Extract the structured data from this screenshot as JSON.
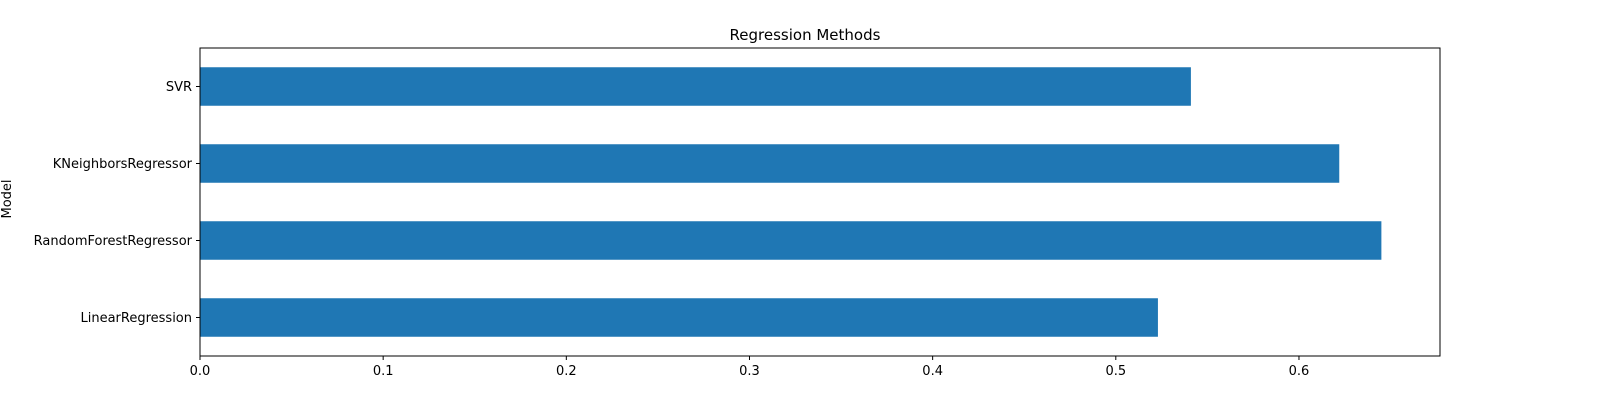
{
  "chart_data": {
    "type": "bar",
    "orientation": "horizontal",
    "title": "Regression Methods",
    "xlabel": "",
    "ylabel": "Model",
    "categories": [
      "LinearRegression",
      "RandomForestRegressor",
      "KNeighborsRegressor",
      "SVR"
    ],
    "values": [
      0.523,
      0.645,
      0.622,
      0.541
    ],
    "xlim": [
      0,
      0.677
    ],
    "xticks": [
      0.0,
      0.1,
      0.2,
      0.3,
      0.4,
      0.5,
      0.6
    ],
    "xtick_labels": [
      "0.0",
      "0.1",
      "0.2",
      "0.3",
      "0.4",
      "0.5",
      "0.6"
    ],
    "bar_color": "#1f77b4",
    "grid": false,
    "legend": false
  }
}
